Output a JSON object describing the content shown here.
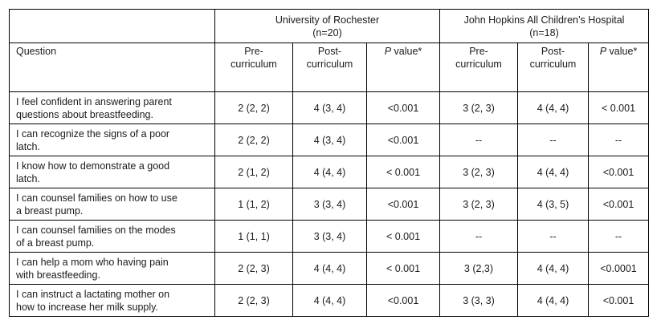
{
  "groups": [
    {
      "name": "University of Rochester",
      "n": "(n=20)"
    },
    {
      "name": "John Hopkins All Children’s Hospital",
      "n": "(n=18)"
    }
  ],
  "header": {
    "question": "Question",
    "pre": [
      "Pre-",
      "curriculum"
    ],
    "post": [
      "Post-",
      "curriculum"
    ],
    "p_italic": "P",
    "p_rest": " value*"
  },
  "rows": [
    {
      "q": [
        "I feel confident in answering parent",
        "questions about breastfeeding."
      ],
      "v": [
        "2 (2, 2)",
        "4 (3, 4)",
        "<0.001",
        "3 (2, 3)",
        "4 (4, 4)",
        "< 0.001"
      ]
    },
    {
      "q": [
        "I can recognize the signs of a poor",
        "latch."
      ],
      "v": [
        "2 (2, 2)",
        "4 (3, 4)",
        "<0.001",
        "--",
        "--",
        "--"
      ]
    },
    {
      "q": [
        "I know how to demonstrate a good",
        "latch."
      ],
      "v": [
        "2 (1, 2)",
        "4 (4, 4)",
        "< 0.001",
        "3 (2, 3)",
        "4 (4, 4)",
        "<0.001"
      ]
    },
    {
      "q": [
        "I can counsel families on how to use",
        "a breast pump."
      ],
      "v": [
        "1 (1, 2)",
        "3 (3, 4)",
        "<0.001",
        "3 (2, 3)",
        "4 (3, 5)",
        "<0.001"
      ]
    },
    {
      "q": [
        "I can counsel families on the modes",
        "of a breast pump."
      ],
      "v": [
        "1 (1, 1)",
        "3 (3, 4)",
        "< 0.001",
        "--",
        "--",
        "--"
      ]
    },
    {
      "q": [
        "I can help a mom who having pain",
        "with breastfeeding."
      ],
      "v": [
        "2 (2, 3)",
        "4 (4, 4)",
        "< 0.001",
        "3 (2,3)",
        "4 (4, 4)",
        "<0.0001"
      ]
    },
    {
      "q": [
        "I can instruct a lactating mother on",
        "how to increase her milk supply."
      ],
      "v": [
        "2 (2, 3)",
        "4 (4, 4)",
        "<0.001",
        "3 (3, 3)",
        "4 (4, 4)",
        "<0.001"
      ]
    }
  ]
}
